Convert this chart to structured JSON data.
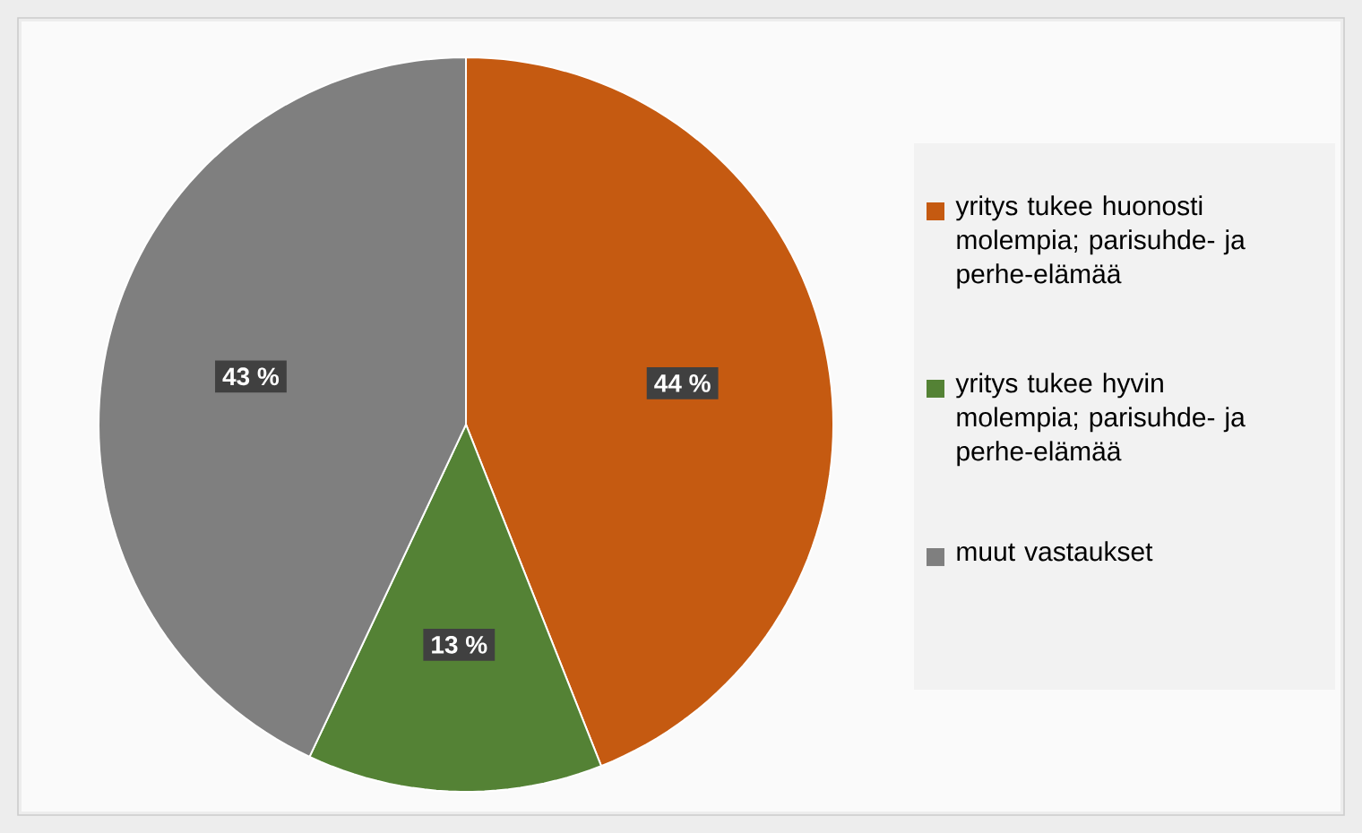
{
  "chart_data": {
    "type": "pie",
    "categories": [
      "yritys tukee huonosti molempia; parisuhde- ja perhe-elämää",
      "yritys tukee hyvin molempia; parisuhde- ja perhe-elämää",
      "muut vastaukset"
    ],
    "values": [
      44,
      13,
      43
    ],
    "colors": [
      "#c55a11",
      "#548235",
      "#7f7f7f"
    ],
    "value_labels": [
      "44 %",
      "13 %",
      "43 %"
    ],
    "legend": "right"
  }
}
